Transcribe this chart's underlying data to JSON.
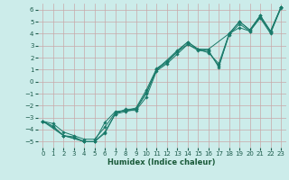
{
  "xlabel": "Humidex (Indice chaleur)",
  "bg_color": "#ccecea",
  "grid_color": "#c8a8a8",
  "line_color": "#1a7a6a",
  "xlim": [
    -0.5,
    23.5
  ],
  "ylim": [
    -5.5,
    6.5
  ],
  "xticks": [
    0,
    1,
    2,
    3,
    4,
    5,
    6,
    7,
    8,
    9,
    10,
    11,
    12,
    13,
    14,
    15,
    16,
    17,
    18,
    19,
    20,
    21,
    22,
    23
  ],
  "yticks": [
    -5,
    -4,
    -3,
    -2,
    -1,
    0,
    1,
    2,
    3,
    4,
    5,
    6
  ],
  "line1_x": [
    0,
    1,
    2,
    3,
    4,
    5,
    6,
    7,
    8,
    9,
    10,
    11,
    12,
    13,
    14,
    15,
    16,
    17,
    18,
    19,
    20,
    21,
    22,
    23
  ],
  "line1_y": [
    -3.3,
    -3.8,
    -4.5,
    -4.7,
    -5.0,
    -5.0,
    -4.3,
    -2.7,
    -2.5,
    -2.3,
    -0.9,
    1.0,
    1.6,
    2.5,
    3.3,
    2.7,
    2.6,
    1.2,
    4.0,
    5.0,
    4.3,
    5.5,
    4.2,
    6.2
  ],
  "line2_x": [
    0,
    1,
    2,
    3,
    4,
    5,
    6,
    7,
    8,
    9,
    10,
    11,
    12,
    13,
    14,
    15,
    16,
    17,
    18,
    19,
    20,
    21,
    22,
    23
  ],
  "line2_y": [
    -3.3,
    -3.7,
    -4.5,
    -4.6,
    -5.0,
    -5.0,
    -3.4,
    -2.5,
    -2.4,
    -2.4,
    -1.3,
    0.9,
    1.5,
    2.3,
    3.1,
    2.7,
    2.4,
    1.5,
    4.0,
    4.5,
    4.2,
    5.3,
    4.0,
    6.2
  ],
  "line3_x": [
    0,
    2,
    4,
    5,
    6,
    7,
    8,
    9,
    10,
    11,
    13,
    14,
    15,
    16,
    18,
    19,
    20,
    21,
    22,
    23
  ],
  "line3_y": [
    -3.3,
    -4.5,
    -5.0,
    -5.0,
    -4.2,
    -2.7,
    -2.3,
    -2.3,
    -1.0,
    1.0,
    2.6,
    3.3,
    2.7,
    2.7,
    4.0,
    5.0,
    4.3,
    5.5,
    4.2,
    6.2
  ],
  "line4_x": [
    0,
    1,
    2,
    3,
    4,
    5,
    6,
    7,
    8,
    9,
    10,
    11,
    12,
    13,
    14,
    15,
    16,
    17,
    18,
    19,
    20,
    21,
    22,
    23
  ],
  "line4_y": [
    -3.3,
    -3.5,
    -4.2,
    -4.5,
    -4.8,
    -4.8,
    -3.8,
    -2.6,
    -2.4,
    -2.2,
    -0.7,
    1.1,
    1.7,
    2.5,
    3.1,
    2.6,
    2.5,
    1.3,
    3.9,
    4.8,
    4.2,
    5.4,
    4.1,
    6.1
  ]
}
